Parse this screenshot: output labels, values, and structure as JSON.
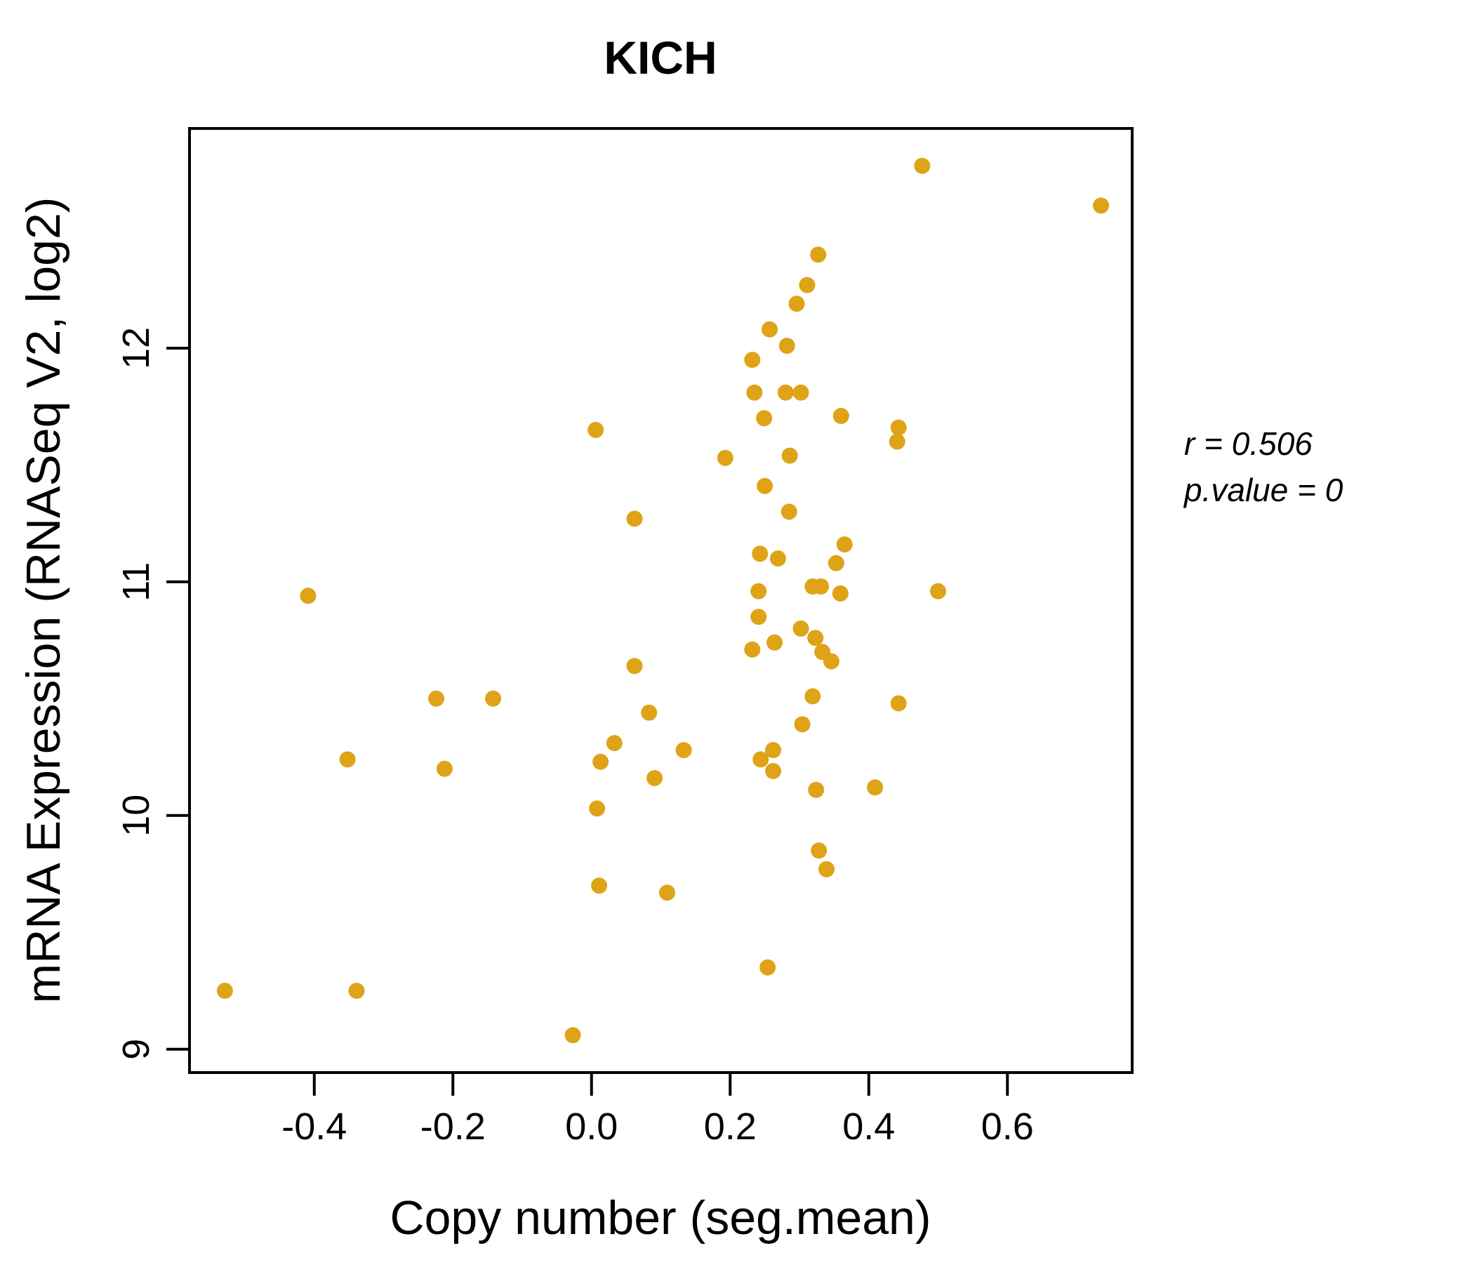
{
  "chart_data": {
    "type": "scatter",
    "title": "KICH",
    "title_color": "#E8A613",
    "point_color": "#DFA318",
    "point_radius": 11.5,
    "xlabel": "Copy number (seg.mean)",
    "ylabel": "mRNA Expression (RNASeq V2, log2)",
    "xlim": [
      -0.58,
      0.78
    ],
    "ylim": [
      8.9,
      12.94
    ],
    "grid": "off",
    "x_ticks": [
      {
        "value": -0.4,
        "label": "-0.4"
      },
      {
        "value": -0.2,
        "label": "-0.2"
      },
      {
        "value": 0.0,
        "label": "0.0"
      },
      {
        "value": 0.2,
        "label": "0.2"
      },
      {
        "value": 0.4,
        "label": "0.4"
      },
      {
        "value": 0.6,
        "label": "0.6"
      }
    ],
    "y_ticks": [
      {
        "value": 9,
        "label": "9"
      },
      {
        "value": 10,
        "label": "10"
      },
      {
        "value": 11,
        "label": "11"
      },
      {
        "value": 12,
        "label": "12"
      }
    ],
    "annotation": {
      "r_label": "r = 0.506",
      "p_label": "p.value = 0"
    },
    "points": [
      [
        0.006,
        11.65
      ],
      [
        0.062,
        11.27
      ],
      [
        -0.409,
        10.94
      ],
      [
        0.477,
        12.78
      ],
      [
        0.735,
        12.61
      ],
      [
        0.327,
        12.4
      ],
      [
        0.311,
        12.27
      ],
      [
        0.296,
        12.19
      ],
      [
        0.257,
        12.08
      ],
      [
        0.282,
        12.01
      ],
      [
        0.232,
        11.95
      ],
      [
        0.235,
        11.81
      ],
      [
        0.28,
        11.81
      ],
      [
        0.302,
        11.81
      ],
      [
        0.249,
        11.7
      ],
      [
        0.36,
        11.71
      ],
      [
        0.443,
        11.66
      ],
      [
        0.441,
        11.6
      ],
      [
        0.193,
        11.53
      ],
      [
        0.286,
        11.54
      ],
      [
        0.25,
        11.41
      ],
      [
        0.285,
        11.3
      ],
      [
        0.243,
        11.12
      ],
      [
        0.269,
        11.1
      ],
      [
        0.365,
        11.16
      ],
      [
        0.353,
        11.08
      ],
      [
        0.319,
        10.98
      ],
      [
        0.331,
        10.98
      ],
      [
        0.359,
        10.95
      ],
      [
        0.241,
        10.96
      ],
      [
        0.5,
        10.96
      ],
      [
        0.241,
        10.85
      ],
      [
        0.302,
        10.8
      ],
      [
        0.323,
        10.76
      ],
      [
        0.232,
        10.71
      ],
      [
        0.264,
        10.74
      ],
      [
        0.333,
        10.7
      ],
      [
        0.346,
        10.66
      ],
      [
        0.319,
        10.51
      ],
      [
        0.443,
        10.48
      ],
      [
        0.304,
        10.39
      ],
      [
        0.262,
        10.28
      ],
      [
        0.133,
        10.28
      ],
      [
        0.244,
        10.24
      ],
      [
        0.262,
        10.19
      ],
      [
        0.324,
        10.11
      ],
      [
        0.409,
        10.12
      ],
      [
        0.328,
        9.85
      ],
      [
        0.339,
        9.77
      ],
      [
        0.109,
        9.67
      ],
      [
        0.254,
        9.35
      ],
      [
        0.062,
        10.64
      ],
      [
        -0.224,
        10.5
      ],
      [
        -0.142,
        10.5
      ],
      [
        0.083,
        10.44
      ],
      [
        0.033,
        10.31
      ],
      [
        -0.352,
        10.24
      ],
      [
        0.013,
        10.23
      ],
      [
        -0.212,
        10.2
      ],
      [
        0.091,
        10.16
      ],
      [
        0.008,
        10.03
      ],
      [
        0.011,
        9.7
      ],
      [
        -0.529,
        9.25
      ],
      [
        -0.339,
        9.25
      ],
      [
        -0.027,
        9.06
      ]
    ]
  }
}
